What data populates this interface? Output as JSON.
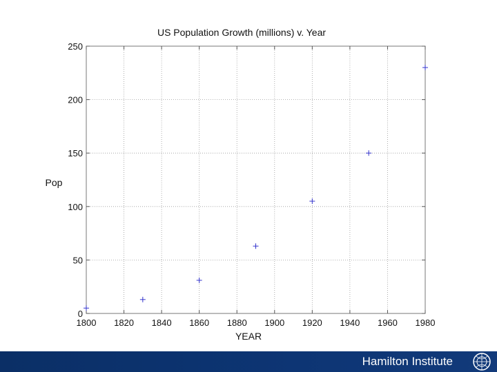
{
  "chart_data": {
    "type": "scatter",
    "title": "US Population Growth (millions) v. Year",
    "xlabel": "YEAR",
    "ylabel": "Pop",
    "xlim": [
      1800,
      1980
    ],
    "ylim": [
      0,
      250
    ],
    "xticks": [
      1800,
      1820,
      1840,
      1860,
      1880,
      1900,
      1920,
      1940,
      1960,
      1980
    ],
    "yticks": [
      0,
      50,
      100,
      150,
      200,
      250
    ],
    "grid": true,
    "marker": "+",
    "marker_color": "#3333cc",
    "points": [
      {
        "x": 1800,
        "y": 5
      },
      {
        "x": 1830,
        "y": 13
      },
      {
        "x": 1860,
        "y": 31
      },
      {
        "x": 1890,
        "y": 63
      },
      {
        "x": 1920,
        "y": 105
      },
      {
        "x": 1950,
        "y": 150
      },
      {
        "x": 1980,
        "y": 230
      }
    ]
  },
  "footer": {
    "institute_name": "Hamilton Institute",
    "logo_icon": "hamilton-seal-icon",
    "background_color": "#0b2f66",
    "text_color": "#ffffff"
  }
}
